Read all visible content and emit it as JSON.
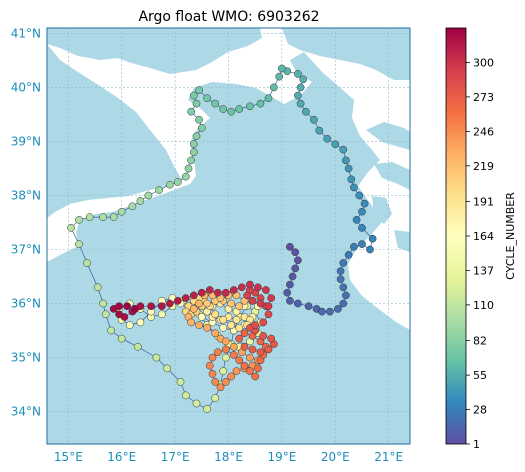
{
  "title": "Argo float WMO: 6903262",
  "colorbar": {
    "label": "CYCLE_NUMBER",
    "ticks": [
      "300",
      "273",
      "246",
      "219",
      "191",
      "164",
      "137",
      "110",
      "82",
      "55",
      "28",
      "1"
    ],
    "min": 1,
    "max": 327,
    "colormap": [
      "#5e4fa2",
      "#3288bd",
      "#66c2a5",
      "#abdda4",
      "#e6f598",
      "#ffffbf",
      "#fee08b",
      "#fdae61",
      "#f46d43",
      "#d53e4f",
      "#9e0142"
    ]
  },
  "map": {
    "lon_range": [
      14.6,
      21.4
    ],
    "lat_range": [
      33.4,
      41.1
    ],
    "lon_ticks": [
      "15°E",
      "16°E",
      "17°E",
      "18°E",
      "19°E",
      "20°E",
      "21°E"
    ],
    "lat_ticks": [
      "34°N",
      "35°N",
      "36°N",
      "37°N",
      "38°N",
      "39°N",
      "40°N",
      "41°N"
    ],
    "land_color": "#ffffff",
    "sea_color": "#add8e6",
    "gridlines": true
  },
  "chart_data": {
    "type": "scatter",
    "x_label": "longitude",
    "y_label": "latitude",
    "trajectory": [
      [
        19.15,
        37.05
      ],
      [
        19.25,
        36.95
      ],
      [
        19.3,
        36.8
      ],
      [
        19.25,
        36.65
      ],
      [
        19.2,
        36.5
      ],
      [
        19.15,
        36.35
      ],
      [
        19.1,
        36.2
      ],
      [
        19.15,
        36.05
      ],
      [
        19.3,
        36.0
      ],
      [
        19.5,
        35.95
      ],
      [
        19.65,
        35.9
      ],
      [
        19.75,
        35.85
      ],
      [
        19.9,
        35.85
      ],
      [
        20.05,
        35.9
      ],
      [
        20.15,
        36.0
      ],
      [
        20.2,
        36.15
      ],
      [
        20.15,
        36.3
      ],
      [
        20.1,
        36.45
      ],
      [
        20.1,
        36.6
      ],
      [
        20.15,
        36.75
      ],
      [
        20.25,
        36.9
      ],
      [
        20.35,
        37.05
      ],
      [
        20.5,
        37.1
      ],
      [
        20.65,
        37.0
      ],
      [
        20.7,
        37.2
      ],
      [
        20.5,
        37.4
      ],
      [
        20.4,
        37.55
      ],
      [
        20.5,
        37.7
      ],
      [
        20.55,
        37.85
      ],
      [
        20.45,
        38.0
      ],
      [
        20.35,
        38.15
      ],
      [
        20.3,
        38.3
      ],
      [
        20.25,
        38.5
      ],
      [
        20.2,
        38.65
      ],
      [
        20.15,
        38.85
      ],
      [
        20.0,
        38.95
      ],
      [
        19.85,
        39.05
      ],
      [
        19.7,
        39.2
      ],
      [
        19.6,
        39.4
      ],
      [
        19.45,
        39.55
      ],
      [
        19.35,
        39.7
      ],
      [
        19.3,
        39.85
      ],
      [
        19.35,
        40.0
      ],
      [
        19.4,
        40.15
      ],
      [
        19.3,
        40.25
      ],
      [
        19.1,
        40.3
      ],
      [
        19.0,
        40.35
      ],
      [
        18.95,
        40.2
      ],
      [
        18.85,
        40.0
      ],
      [
        18.75,
        39.8
      ],
      [
        18.6,
        39.7
      ],
      [
        18.4,
        39.65
      ],
      [
        18.2,
        39.6
      ],
      [
        18.05,
        39.55
      ],
      [
        17.9,
        39.6
      ],
      [
        17.75,
        39.7
      ],
      [
        17.6,
        39.8
      ],
      [
        17.45,
        39.95
      ],
      [
        17.35,
        39.85
      ],
      [
        17.4,
        39.7
      ],
      [
        17.3,
        39.55
      ],
      [
        17.45,
        39.4
      ],
      [
        17.5,
        39.25
      ],
      [
        17.4,
        39.1
      ],
      [
        17.35,
        38.95
      ],
      [
        17.35,
        38.8
      ],
      [
        17.3,
        38.65
      ],
      [
        17.25,
        38.5
      ],
      [
        17.2,
        38.35
      ],
      [
        17.05,
        38.25
      ],
      [
        16.9,
        38.2
      ],
      [
        16.7,
        38.1
      ],
      [
        16.5,
        38.0
      ],
      [
        16.35,
        37.9
      ],
      [
        16.2,
        37.8
      ],
      [
        16.0,
        37.7
      ],
      [
        15.85,
        37.6
      ],
      [
        15.65,
        37.6
      ],
      [
        15.4,
        37.6
      ],
      [
        15.2,
        37.55
      ],
      [
        15.05,
        37.4
      ],
      [
        15.2,
        37.1
      ],
      [
        15.35,
        36.75
      ],
      [
        15.55,
        36.3
      ],
      [
        15.65,
        36.0
      ],
      [
        15.7,
        35.8
      ],
      [
        15.8,
        35.5
      ],
      [
        16.0,
        35.35
      ],
      [
        16.3,
        35.2
      ],
      [
        16.65,
        35.0
      ],
      [
        16.85,
        34.8
      ],
      [
        17.1,
        34.55
      ],
      [
        17.2,
        34.3
      ],
      [
        17.4,
        34.15
      ],
      [
        17.6,
        34.05
      ],
      [
        17.75,
        34.25
      ],
      [
        17.85,
        34.5
      ],
      [
        17.9,
        34.75
      ],
      [
        17.95,
        35.0
      ],
      [
        18.05,
        35.25
      ],
      [
        18.1,
        35.5
      ],
      [
        18.2,
        35.75
      ],
      [
        18.35,
        35.95
      ],
      [
        18.5,
        35.85
      ],
      [
        18.6,
        35.65
      ],
      [
        18.55,
        35.45
      ],
      [
        18.4,
        35.3
      ],
      [
        18.2,
        35.2
      ],
      [
        18.0,
        35.25
      ],
      [
        17.8,
        35.4
      ],
      [
        17.6,
        35.6
      ],
      [
        17.45,
        35.8
      ],
      [
        17.3,
        35.95
      ],
      [
        17.15,
        36.05
      ],
      [
        16.95,
        35.95
      ],
      [
        16.75,
        35.8
      ],
      [
        16.55,
        35.75
      ],
      [
        16.35,
        35.9
      ],
      [
        16.15,
        36.0
      ],
      [
        15.95,
        35.9
      ],
      [
        16.0,
        35.7
      ],
      [
        16.15,
        35.6
      ],
      [
        16.35,
        35.65
      ],
      [
        16.55,
        35.85
      ],
      [
        16.75,
        36.05
      ],
      [
        16.95,
        36.1
      ],
      [
        17.1,
        36.0
      ],
      [
        17.3,
        35.85
      ],
      [
        17.5,
        35.75
      ],
      [
        17.7,
        35.65
      ],
      [
        17.9,
        35.55
      ],
      [
        18.1,
        35.5
      ],
      [
        18.3,
        35.6
      ],
      [
        18.45,
        35.75
      ],
      [
        18.55,
        35.95
      ],
      [
        18.45,
        36.05
      ],
      [
        18.3,
        35.95
      ],
      [
        18.15,
        35.85
      ],
      [
        18.0,
        35.9
      ],
      [
        17.85,
        36.0
      ],
      [
        17.7,
        35.95
      ],
      [
        17.6,
        35.85
      ],
      [
        17.7,
        35.75
      ],
      [
        17.85,
        35.7
      ],
      [
        18.0,
        35.75
      ],
      [
        18.15,
        35.7
      ],
      [
        18.3,
        35.75
      ],
      [
        18.4,
        35.7
      ],
      [
        18.35,
        35.6
      ],
      [
        18.2,
        35.55
      ],
      [
        18.05,
        35.6
      ],
      [
        17.9,
        35.7
      ],
      [
        17.75,
        35.8
      ],
      [
        17.65,
        35.95
      ],
      [
        17.55,
        36.05
      ],
      [
        17.45,
        36.1
      ],
      [
        17.35,
        36.05
      ],
      [
        17.25,
        35.95
      ],
      [
        17.2,
        35.85
      ],
      [
        17.3,
        35.8
      ],
      [
        17.4,
        35.85
      ],
      [
        17.5,
        35.95
      ],
      [
        17.6,
        36.0
      ],
      [
        17.75,
        36.05
      ],
      [
        17.9,
        36.05
      ],
      [
        18.05,
        36.0
      ],
      [
        18.2,
        35.95
      ],
      [
        18.3,
        36.05
      ],
      [
        18.15,
        36.15
      ],
      [
        18.0,
        36.15
      ],
      [
        17.85,
        36.1
      ],
      [
        17.7,
        36.15
      ],
      [
        17.55,
        36.15
      ],
      [
        17.45,
        36.0
      ],
      [
        17.35,
        35.9
      ],
      [
        17.25,
        35.75
      ],
      [
        17.3,
        35.65
      ],
      [
        17.45,
        35.6
      ],
      [
        17.6,
        35.55
      ],
      [
        17.75,
        35.45
      ],
      [
        17.85,
        35.35
      ],
      [
        17.95,
        35.3
      ],
      [
        18.1,
        35.2
      ],
      [
        18.25,
        35.1
      ],
      [
        18.4,
        35.0
      ],
      [
        18.55,
        34.95
      ],
      [
        18.45,
        34.85
      ],
      [
        18.3,
        34.8
      ],
      [
        18.15,
        34.75
      ],
      [
        18.05,
        34.65
      ],
      [
        17.95,
        34.55
      ],
      [
        17.85,
        34.45
      ],
      [
        17.75,
        34.55
      ],
      [
        17.7,
        34.7
      ],
      [
        17.65,
        34.85
      ],
      [
        17.7,
        35.0
      ],
      [
        17.8,
        35.1
      ],
      [
        17.95,
        35.15
      ],
      [
        18.1,
        35.05
      ],
      [
        18.2,
        34.95
      ],
      [
        18.3,
        34.85
      ],
      [
        18.4,
        34.75
      ],
      [
        18.5,
        34.65
      ],
      [
        18.55,
        34.8
      ],
      [
        18.6,
        34.95
      ],
      [
        18.65,
        35.05
      ],
      [
        18.7,
        35.2
      ],
      [
        18.6,
        35.3
      ],
      [
        18.45,
        35.4
      ],
      [
        18.3,
        35.45
      ],
      [
        18.2,
        35.35
      ],
      [
        18.3,
        35.2
      ],
      [
        18.45,
        35.15
      ],
      [
        18.6,
        35.1
      ],
      [
        18.75,
        35.15
      ],
      [
        18.85,
        35.25
      ],
      [
        18.8,
        35.35
      ],
      [
        18.65,
        35.4
      ],
      [
        18.5,
        35.5
      ],
      [
        18.4,
        35.55
      ],
      [
        18.5,
        35.6
      ],
      [
        18.65,
        35.65
      ],
      [
        18.75,
        35.8
      ],
      [
        18.7,
        35.95
      ],
      [
        18.6,
        36.1
      ],
      [
        18.5,
        36.2
      ],
      [
        18.4,
        36.25
      ],
      [
        18.35,
        36.15
      ],
      [
        18.45,
        36.05
      ],
      [
        18.6,
        36.0
      ],
      [
        18.75,
        35.95
      ],
      [
        18.8,
        36.1
      ],
      [
        18.7,
        36.25
      ],
      [
        18.55,
        36.3
      ],
      [
        18.4,
        36.35
      ],
      [
        18.25,
        36.3
      ],
      [
        18.1,
        36.25
      ],
      [
        17.95,
        36.2
      ],
      [
        17.8,
        36.2
      ],
      [
        17.65,
        36.25
      ],
      [
        17.5,
        36.2
      ],
      [
        17.35,
        36.15
      ],
      [
        17.2,
        36.1
      ],
      [
        17.05,
        36.05
      ],
      [
        16.9,
        36.0
      ],
      [
        16.75,
        35.95
      ],
      [
        16.55,
        35.95
      ],
      [
        16.35,
        35.95
      ],
      [
        16.2,
        35.85
      ],
      [
        16.05,
        35.75
      ],
      [
        15.95,
        35.8
      ],
      [
        15.85,
        35.9
      ],
      [
        15.95,
        35.95
      ],
      [
        16.1,
        35.95
      ],
      [
        16.25,
        35.9
      ]
    ]
  }
}
